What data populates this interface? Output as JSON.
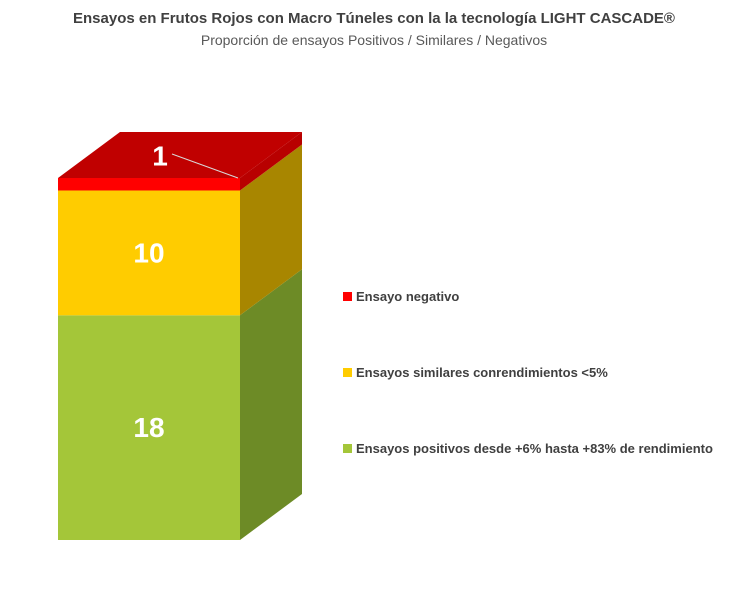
{
  "chart_data": {
    "type": "bar",
    "stacked": true,
    "three_d": true,
    "title": "Ensayos en Frutos Rojos con Macro Túneles con la la tecnología  LIGHT CASCADE®",
    "subtitle": "Proporción de ensayos Positivos / Similares / Negativos",
    "categories": [
      ""
    ],
    "series": [
      {
        "name": "Ensayos positivos desde +6% hasta +83% de rendimiento",
        "values": [
          18
        ],
        "label": "18",
        "color": "#A4C639",
        "side_color": "#6D8B26",
        "top_color": "#B8D456"
      },
      {
        "name": "Ensayos similares conrendimientos <5%",
        "values": [
          10
        ],
        "label": "10",
        "color": "#FFCC00",
        "side_color": "#A88600",
        "top_color": "#FFE066"
      },
      {
        "name": "Ensayo negativo",
        "values": [
          1
        ],
        "label": "1",
        "color": "#FF0000",
        "side_color": "#B80000",
        "top_color": "#C00000"
      }
    ],
    "legend_order": [
      2,
      1,
      0
    ],
    "legend_position": "right",
    "grid": false,
    "ylim": [
      0,
      29
    ]
  }
}
